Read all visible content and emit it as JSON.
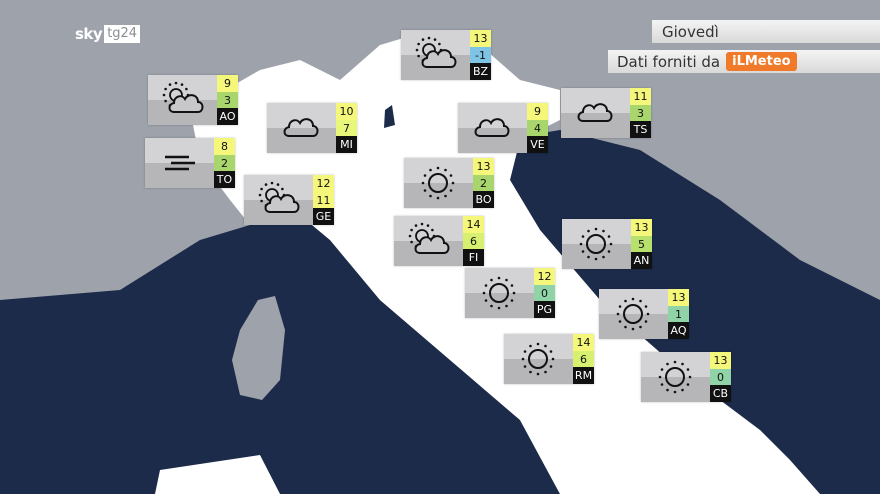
{
  "header": {
    "brand": "sky",
    "brand_tg": "tg24",
    "day": "Giovedì",
    "credit": "Dati forniti da",
    "provider": "iLMeteo"
  },
  "colors": {
    "sea": "#1c2b4a",
    "land_foreign": "#9ea2ab",
    "italy": "#ffffff",
    "temp_warm": "#f4f77a",
    "temp_mild": "#a8d66c",
    "temp_cool": "#8fd3a6",
    "temp_cold": "#7fc4e4"
  },
  "cities": [
    {
      "code": "BZ",
      "icon": "partly-cloudy",
      "max": "13",
      "min": "-1",
      "min_color": "#7fc4e4"
    },
    {
      "code": "AO",
      "icon": "partly-cloudy",
      "max": "9",
      "min": "3",
      "min_color": "#a8d66c"
    },
    {
      "code": "MI",
      "icon": "cloud",
      "max": "10",
      "min": "7",
      "min_color": "#e8f77a"
    },
    {
      "code": "VE",
      "icon": "cloud",
      "max": "9",
      "min": "4",
      "min_color": "#a8d66c"
    },
    {
      "code": "TS",
      "icon": "cloud",
      "max": "11",
      "min": "3",
      "min_color": "#a8d66c"
    },
    {
      "code": "TO",
      "icon": "fog",
      "max": "8",
      "min": "2",
      "min_color": "#a8d66c"
    },
    {
      "code": "GE",
      "icon": "partly-cloudy",
      "max": "12",
      "min": "11",
      "min_color": "#f4f77a"
    },
    {
      "code": "BO",
      "icon": "sun",
      "max": "13",
      "min": "2",
      "min_color": "#a8d66c"
    },
    {
      "code": "FI",
      "icon": "partly-cloudy",
      "max": "14",
      "min": "6",
      "min_color": "#d8f070"
    },
    {
      "code": "AN",
      "icon": "sun",
      "max": "13",
      "min": "5",
      "min_color": "#b8e06c"
    },
    {
      "code": "PG",
      "icon": "sun",
      "max": "12",
      "min": "0",
      "min_color": "#8fd3a6"
    },
    {
      "code": "AQ",
      "icon": "sun",
      "max": "13",
      "min": "1",
      "min_color": "#8fd3a6"
    },
    {
      "code": "RM",
      "icon": "sun",
      "max": "14",
      "min": "6",
      "min_color": "#d8f070"
    },
    {
      "code": "CB",
      "icon": "sun",
      "max": "13",
      "min": "0",
      "min_color": "#8fd3a6"
    }
  ]
}
